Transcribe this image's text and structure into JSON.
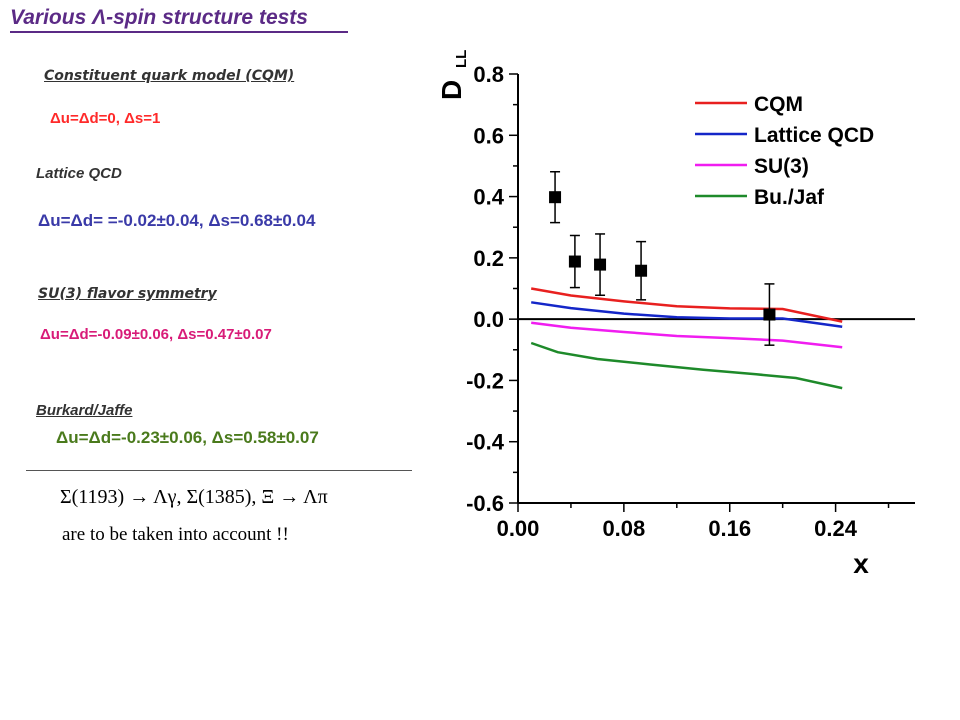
{
  "slide": {
    "title": "Various Λ-spin structure tests",
    "models": [
      {
        "heading": "Constituent quark model (CQM)",
        "equation": "Δu=Δd=0,  Δs=1"
      },
      {
        "heading": "Lattice QCD",
        "equation": "Δu=Δd= =-0.02±0.04,    Δs=0.68±0.04"
      },
      {
        "heading": "SU(3) flavor symmetry",
        "equation": "Δu=Δd=-0.09±0.06, Δs=0.47±0.07"
      },
      {
        "heading": "Burkard/Jaffe",
        "equation": "Δu=Δd=-0.23±0.06, Δs=0.58±0.07"
      }
    ],
    "formula": "Σ(1193) → Λγ,  Σ(1385), Ξ → Λπ",
    "formula_note": "are to be taken into account !!"
  },
  "chart_data": {
    "type": "line",
    "ylabel": "D",
    "ylabel_sub": "LL",
    "xlabel": "x",
    "xlim": [
      0.0,
      0.3
    ],
    "ylim": [
      -0.6,
      0.8
    ],
    "xticks": [
      "0.00",
      "0.08",
      "0.16",
      "0.24"
    ],
    "yticks": [
      "0.8",
      "0.6",
      "0.4",
      "0.2",
      "0.0",
      "-0.2",
      "-0.4",
      "-0.6"
    ],
    "zero_line": true,
    "legend_position": "top-right",
    "series": [
      {
        "name": "CQM",
        "color": "#e8201f",
        "x": [
          0.01,
          0.04,
          0.08,
          0.12,
          0.16,
          0.2,
          0.245
        ],
        "y": [
          0.1,
          0.077,
          0.058,
          0.042,
          0.035,
          0.033,
          -0.008
        ]
      },
      {
        "name": "Lattice QCD",
        "color": "#1426c8",
        "x": [
          0.01,
          0.04,
          0.08,
          0.12,
          0.16,
          0.2,
          0.245
        ],
        "y": [
          0.055,
          0.036,
          0.018,
          0.006,
          0.002,
          0.002,
          -0.025
        ]
      },
      {
        "name": "SU(3)",
        "color": "#f01df0",
        "x": [
          0.01,
          0.04,
          0.08,
          0.12,
          0.16,
          0.2,
          0.245
        ],
        "y": [
          -0.012,
          -0.028,
          -0.042,
          -0.055,
          -0.062,
          -0.07,
          -0.092
        ]
      },
      {
        "name": "Bu./Jaf",
        "color": "#1e8a2a",
        "x": [
          0.01,
          0.03,
          0.06,
          0.1,
          0.14,
          0.18,
          0.21,
          0.245
        ],
        "y": [
          -0.078,
          -0.108,
          -0.13,
          -0.148,
          -0.165,
          -0.18,
          -0.192,
          -0.225
        ]
      }
    ],
    "data_points": [
      {
        "x": 0.028,
        "y": 0.398,
        "err": 0.083
      },
      {
        "x": 0.043,
        "y": 0.188,
        "err": 0.085
      },
      {
        "x": 0.062,
        "y": 0.178,
        "err": 0.1
      },
      {
        "x": 0.093,
        "y": 0.158,
        "err": 0.095
      },
      {
        "x": 0.19,
        "y": 0.015,
        "err": 0.1
      }
    ]
  }
}
